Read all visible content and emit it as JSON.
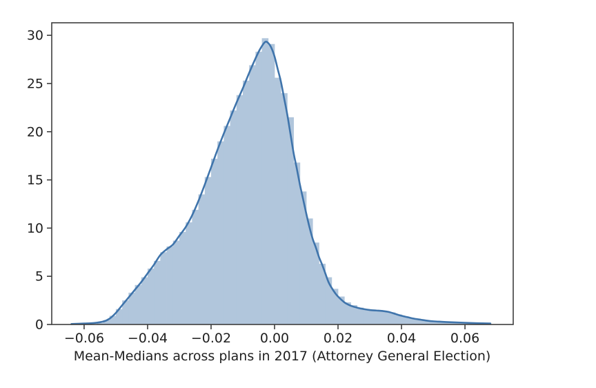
{
  "figure": {
    "background": "#ffffff",
    "colors": {
      "hist_fill": "#b1c6dc",
      "kde_line": "#3f74ab",
      "spine": "#3d3d3d",
      "tick_mark": "#3d3d3d",
      "text": "#1f1f1f"
    }
  },
  "chart_data": {
    "type": "bar",
    "subtype": "histogram-with-kde",
    "title": "",
    "xlabel": "Mean-Medians across plans in 2017 (Attorney General Election)",
    "ylabel": "",
    "xlim": [
      -0.0702,
      0.0752
    ],
    "ylim": [
      0,
      31.3
    ],
    "grid": false,
    "legend": "none",
    "x_tick_values": [
      -0.06,
      -0.04,
      -0.02,
      0.0,
      0.02,
      0.04,
      0.06
    ],
    "x_tick_labels": [
      "−0.06",
      "−0.04",
      "−0.02",
      "0.00",
      "0.02",
      "0.04",
      "0.06"
    ],
    "y_tick_values": [
      0,
      5,
      10,
      15,
      20,
      25,
      30
    ],
    "y_tick_labels": [
      "0",
      "5",
      "10",
      "15",
      "20",
      "25",
      "30"
    ],
    "histogram": {
      "bin_start": -0.056,
      "bin_width": 0.002,
      "heights": [
        0.15,
        0.45,
        0.9,
        1.6,
        2.5,
        3.3,
        4.1,
        4.9,
        5.8,
        6.6,
        7.5,
        8.1,
        8.7,
        9.6,
        10.6,
        11.9,
        13.5,
        15.3,
        17.2,
        19.0,
        20.6,
        22.2,
        23.8,
        25.3,
        26.9,
        28.3,
        29.7,
        29.1,
        25.6,
        24.0,
        21.5,
        16.8,
        13.8,
        11.0,
        8.5,
        6.3,
        4.9,
        3.7,
        2.9,
        2.3,
        2.0,
        1.75,
        1.6,
        1.55,
        1.5,
        1.4,
        1.25,
        1.05,
        0.85,
        0.7,
        0.6,
        0.5,
        0.4,
        0.33,
        0.28,
        0.24,
        0.2,
        0.17,
        0.14,
        0.12,
        0.1,
        0.08
      ]
    },
    "kde": {
      "x": [
        -0.064,
        -0.06,
        -0.057,
        -0.054,
        -0.052,
        -0.05,
        -0.048,
        -0.046,
        -0.044,
        -0.042,
        -0.04,
        -0.038,
        -0.036,
        -0.034,
        -0.032,
        -0.03,
        -0.028,
        -0.026,
        -0.024,
        -0.022,
        -0.02,
        -0.018,
        -0.016,
        -0.014,
        -0.012,
        -0.01,
        -0.008,
        -0.006,
        -0.0045,
        -0.003,
        -0.002,
        -0.001,
        0.0,
        0.001,
        0.002,
        0.003,
        0.004,
        0.005,
        0.006,
        0.007,
        0.008,
        0.009,
        0.01,
        0.011,
        0.012,
        0.013,
        0.014,
        0.015,
        0.016,
        0.017,
        0.018,
        0.019,
        0.02,
        0.022,
        0.024,
        0.026,
        0.028,
        0.03,
        0.032,
        0.034,
        0.036,
        0.038,
        0.04,
        0.042,
        0.044,
        0.046,
        0.048,
        0.05,
        0.053,
        0.056,
        0.06,
        0.064,
        0.068
      ],
      "y": [
        0.05,
        0.1,
        0.15,
        0.3,
        0.6,
        1.2,
        2.0,
        2.8,
        3.6,
        4.4,
        5.3,
        6.2,
        7.2,
        7.8,
        8.3,
        9.2,
        10.1,
        11.3,
        12.8,
        14.5,
        16.3,
        18.1,
        19.8,
        21.4,
        23.0,
        24.5,
        26.1,
        27.6,
        28.6,
        29.3,
        29.2,
        28.7,
        27.8,
        26.5,
        25.2,
        23.5,
        21.8,
        19.8,
        17.8,
        16.2,
        14.5,
        13.0,
        11.5,
        10.1,
        8.9,
        8.0,
        7.0,
        6.2,
        5.3,
        4.4,
        3.8,
        3.3,
        2.9,
        2.3,
        1.95,
        1.75,
        1.6,
        1.5,
        1.45,
        1.4,
        1.3,
        1.1,
        0.9,
        0.75,
        0.6,
        0.5,
        0.4,
        0.33,
        0.27,
        0.23,
        0.18,
        0.13,
        0.1
      ]
    }
  }
}
